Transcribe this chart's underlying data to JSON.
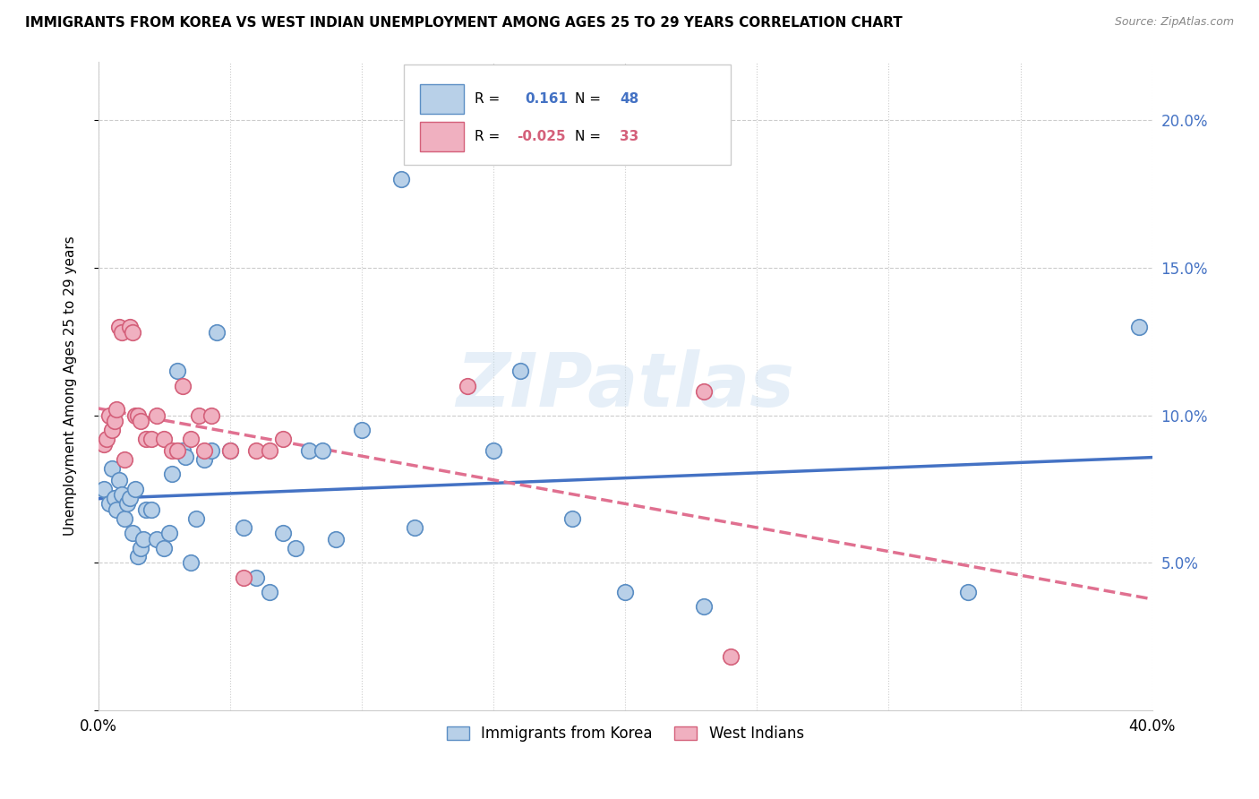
{
  "title": "IMMIGRANTS FROM KOREA VS WEST INDIAN UNEMPLOYMENT AMONG AGES 25 TO 29 YEARS CORRELATION CHART",
  "source": "Source: ZipAtlas.com",
  "ylabel": "Unemployment Among Ages 25 to 29 years",
  "xlim": [
    0.0,
    0.4
  ],
  "ylim": [
    0.0,
    0.22
  ],
  "yticks": [
    0.0,
    0.05,
    0.1,
    0.15,
    0.2
  ],
  "ytick_labels": [
    "",
    "5.0%",
    "10.0%",
    "15.0%",
    "20.0%"
  ],
  "xticks": [
    0.0,
    0.05,
    0.1,
    0.15,
    0.2,
    0.25,
    0.3,
    0.35,
    0.4
  ],
  "xtick_labels": [
    "0.0%",
    "",
    "",
    "",
    "",
    "",
    "",
    "",
    "40.0%"
  ],
  "korea_R": 0.161,
  "korea_N": 48,
  "westindian_R": -0.025,
  "westindian_N": 33,
  "korea_color": "#b8d0e8",
  "korea_edge_color": "#5b8ec4",
  "westindian_color": "#f0b0c0",
  "westindian_edge_color": "#d4607a",
  "korea_line_color": "#4472c4",
  "westindian_line_color": "#e07090",
  "watermark": "ZIPatlas",
  "right_axis_color": "#4472c4",
  "korea_x": [
    0.002,
    0.004,
    0.005,
    0.006,
    0.007,
    0.008,
    0.009,
    0.01,
    0.011,
    0.012,
    0.013,
    0.014,
    0.015,
    0.016,
    0.017,
    0.018,
    0.02,
    0.022,
    0.025,
    0.027,
    0.028,
    0.03,
    0.032,
    0.033,
    0.035,
    0.037,
    0.04,
    0.043,
    0.045,
    0.05,
    0.055,
    0.06,
    0.065,
    0.07,
    0.075,
    0.08,
    0.085,
    0.09,
    0.1,
    0.115,
    0.12,
    0.15,
    0.16,
    0.18,
    0.2,
    0.23,
    0.33,
    0.395
  ],
  "korea_y": [
    0.075,
    0.07,
    0.082,
    0.072,
    0.068,
    0.078,
    0.073,
    0.065,
    0.07,
    0.072,
    0.06,
    0.075,
    0.052,
    0.055,
    0.058,
    0.068,
    0.068,
    0.058,
    0.055,
    0.06,
    0.08,
    0.115,
    0.088,
    0.086,
    0.05,
    0.065,
    0.085,
    0.088,
    0.128,
    0.088,
    0.062,
    0.045,
    0.04,
    0.06,
    0.055,
    0.088,
    0.088,
    0.058,
    0.095,
    0.18,
    0.062,
    0.088,
    0.115,
    0.065,
    0.04,
    0.035,
    0.04,
    0.13
  ],
  "westindian_x": [
    0.002,
    0.003,
    0.004,
    0.005,
    0.006,
    0.007,
    0.008,
    0.009,
    0.01,
    0.012,
    0.013,
    0.014,
    0.015,
    0.016,
    0.018,
    0.02,
    0.022,
    0.025,
    0.028,
    0.03,
    0.032,
    0.035,
    0.038,
    0.04,
    0.043,
    0.05,
    0.055,
    0.06,
    0.065,
    0.07,
    0.14,
    0.23,
    0.24
  ],
  "westindian_y": [
    0.09,
    0.092,
    0.1,
    0.095,
    0.098,
    0.102,
    0.13,
    0.128,
    0.085,
    0.13,
    0.128,
    0.1,
    0.1,
    0.098,
    0.092,
    0.092,
    0.1,
    0.092,
    0.088,
    0.088,
    0.11,
    0.092,
    0.1,
    0.088,
    0.1,
    0.088,
    0.045,
    0.088,
    0.088,
    0.092,
    0.11,
    0.108,
    0.018
  ]
}
